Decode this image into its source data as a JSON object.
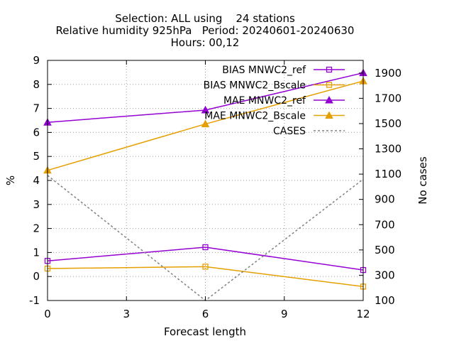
{
  "title_lines": [
    "Selection: ALL using    24 stations",
    "Relative humidity 925hPa   Period: 20240601-20240630",
    "Hours: 00,12"
  ],
  "chart_data": {
    "type": "line",
    "xlabel": "Forecast length",
    "ylabel": "%",
    "y2label": "No cases",
    "xlim": [
      0,
      12
    ],
    "ylim": [
      -1,
      9
    ],
    "y2lim": [
      100,
      2000
    ],
    "xticks": [
      0,
      3,
      6,
      9,
      12
    ],
    "yticks": [
      -1,
      0,
      1,
      2,
      3,
      4,
      5,
      6,
      7,
      8,
      9
    ],
    "y2ticks": [
      100,
      300,
      500,
      700,
      900,
      1100,
      1300,
      1500,
      1700,
      1900
    ],
    "grid": true,
    "legend_position": "top-right",
    "x": [
      0,
      6,
      12
    ],
    "series": [
      {
        "name": "BIAS MNWC2_ref",
        "axis": "y",
        "marker": "square",
        "color": "#9400d3",
        "values": [
          0.65,
          1.22,
          0.27
        ]
      },
      {
        "name": "BIAS MNWC2_Bscale",
        "axis": "y",
        "marker": "square",
        "color": "#e69f00",
        "values": [
          0.33,
          0.41,
          -0.42
        ]
      },
      {
        "name": "MAE MNWC2_ref",
        "axis": "y",
        "marker": "triangle",
        "color": "#9400d3",
        "values": [
          6.42,
          6.93,
          8.48
        ]
      },
      {
        "name": "MAE MNWC2_Bscale",
        "axis": "y",
        "marker": "triangle",
        "color": "#e69f00",
        "values": [
          4.42,
          6.35,
          8.14
        ]
      },
      {
        "name": "CASES",
        "axis": "y2",
        "marker": "none",
        "color": "#808080",
        "dashed": true,
        "values": [
          1090,
          100,
          1060
        ]
      }
    ]
  }
}
